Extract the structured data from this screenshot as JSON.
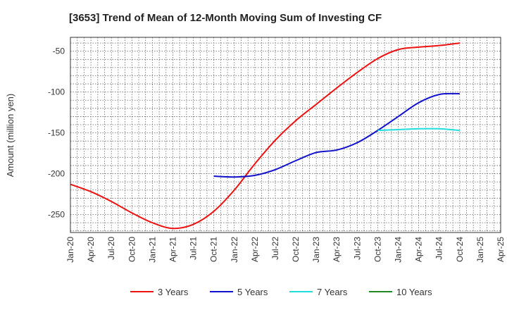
{
  "chart_data": {
    "type": "line",
    "title": "[3653]  Trend of Mean of 12-Month Moving Sum of Investing CF",
    "xlabel": "",
    "ylabel": "Amount (million yen)",
    "ylim": [
      -272,
      -33
    ],
    "yticks": [
      -50,
      -100,
      -150,
      -200,
      -250
    ],
    "x_tick_labels": [
      "Jan-20",
      "Apr-20",
      "Jul-20",
      "Oct-20",
      "Jan-21",
      "Apr-21",
      "Jul-21",
      "Oct-21",
      "Jan-22",
      "Apr-22",
      "Jul-22",
      "Oct-22",
      "Jan-23",
      "Apr-23",
      "Jul-23",
      "Oct-23",
      "Jan-24",
      "Apr-24",
      "Jul-24",
      "Oct-24",
      "Jan-25",
      "Apr-25"
    ],
    "grid": true,
    "legend_position": "bottom",
    "series": [
      {
        "name": "3 Years",
        "color": "#ee1111",
        "x": [
          "Jan-20",
          "Apr-20",
          "Jul-20",
          "Oct-20",
          "Jan-21",
          "Apr-21",
          "Jul-21",
          "Oct-21",
          "Jan-22",
          "Apr-22",
          "Jul-22",
          "Oct-22",
          "Jan-23",
          "Apr-23",
          "Jul-23",
          "Oct-23",
          "Jan-24",
          "Apr-24",
          "Jul-24",
          "Oct-24"
        ],
        "values": [
          -213,
          -222,
          -234,
          -248,
          -260,
          -267,
          -262,
          -246,
          -220,
          -188,
          -159,
          -135,
          -115,
          -95,
          -76,
          -59,
          -48,
          -45,
          -43,
          -40
        ]
      },
      {
        "name": "5 Years",
        "color": "#1111cc",
        "x": [
          "Oct-21",
          "Jan-22",
          "Apr-22",
          "Jul-22",
          "Oct-22",
          "Jan-23",
          "Apr-23",
          "Jul-23",
          "Oct-23",
          "Jan-24",
          "Apr-24",
          "Jul-24",
          "Oct-24"
        ],
        "values": [
          -203,
          -204,
          -202,
          -195,
          -184,
          -174,
          -171,
          -162,
          -147,
          -130,
          -113,
          -103,
          -102
        ]
      },
      {
        "name": "7 Years",
        "color": "#22dddd",
        "x": [
          "Oct-23",
          "Jan-24",
          "Apr-24",
          "Jul-24",
          "Oct-24"
        ],
        "values": [
          -147,
          -146,
          -145,
          -145,
          -147
        ]
      },
      {
        "name": "10 Years",
        "color": "#228822",
        "x": [],
        "values": []
      }
    ]
  }
}
